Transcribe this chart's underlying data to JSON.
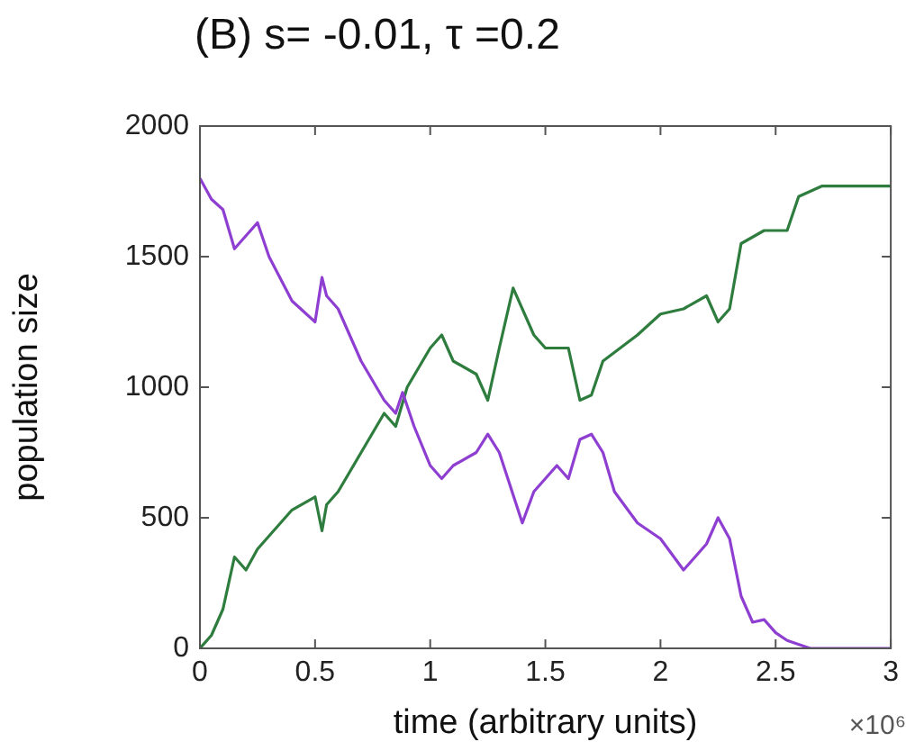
{
  "chart_data": {
    "type": "line",
    "title": "(B) s= -0.01, τ =0.2",
    "xlabel": "time (arbitrary units)",
    "ylabel": "population size",
    "x": [
      0,
      0.05,
      0.1,
      0.15,
      0.2,
      0.25,
      0.3,
      0.4,
      0.5,
      0.53,
      0.55,
      0.6,
      0.7,
      0.8,
      0.85,
      0.88,
      0.93,
      1.0,
      1.05,
      1.1,
      1.2,
      1.25,
      1.3,
      1.4,
      1.45,
      1.5,
      1.55,
      1.6,
      1.65,
      1.7,
      1.75,
      1.8,
      1.9,
      2.0,
      2.1,
      2.2,
      2.25,
      2.3,
      2.35,
      2.4,
      2.45,
      2.5,
      2.55,
      2.65,
      3.0
    ],
    "series": [
      {
        "color": "#8e3fd1",
        "values": [
          1800,
          1720,
          1680,
          1530,
          1580,
          1630,
          1500,
          1330,
          1250,
          1420,
          1350,
          1300,
          1100,
          950,
          900,
          980,
          850,
          700,
          650,
          700,
          750,
          820,
          750,
          480,
          600,
          650,
          700,
          650,
          800,
          820,
          750,
          600,
          480,
          420,
          300,
          400,
          500,
          420,
          200,
          100,
          110,
          60,
          30,
          0,
          0
        ]
      },
      {
        "color": "#2e7d3e",
        "x": [
          0,
          0.05,
          0.1,
          0.15,
          0.2,
          0.25,
          0.3,
          0.4,
          0.5,
          0.53,
          0.55,
          0.6,
          0.7,
          0.8,
          0.85,
          0.9,
          1.0,
          1.05,
          1.1,
          1.2,
          1.25,
          1.3,
          1.36,
          1.45,
          1.5,
          1.6,
          1.65,
          1.7,
          1.75,
          1.9,
          2.0,
          2.1,
          2.2,
          2.25,
          2.3,
          2.35,
          2.45,
          2.55,
          2.6,
          2.7,
          3.0
        ],
        "values": [
          0,
          50,
          150,
          350,
          300,
          380,
          430,
          530,
          580,
          450,
          550,
          600,
          750,
          900,
          850,
          1000,
          1150,
          1200,
          1100,
          1050,
          950,
          1150,
          1380,
          1200,
          1150,
          1150,
          950,
          970,
          1100,
          1200,
          1280,
          1300,
          1350,
          1250,
          1300,
          1550,
          1600,
          1600,
          1730,
          1770,
          1770
        ]
      }
    ],
    "xlim": [
      0,
      3
    ],
    "xticks": [
      0,
      0.5,
      1,
      1.5,
      2,
      2.5,
      3
    ],
    "ylim": [
      0,
      2000
    ],
    "yticks": [
      0,
      500,
      1000,
      1500,
      2000
    ],
    "annotations": [
      "×10⁶"
    ],
    "grid": false,
    "legend": false,
    "marker": "none",
    "line_style": "solid"
  }
}
